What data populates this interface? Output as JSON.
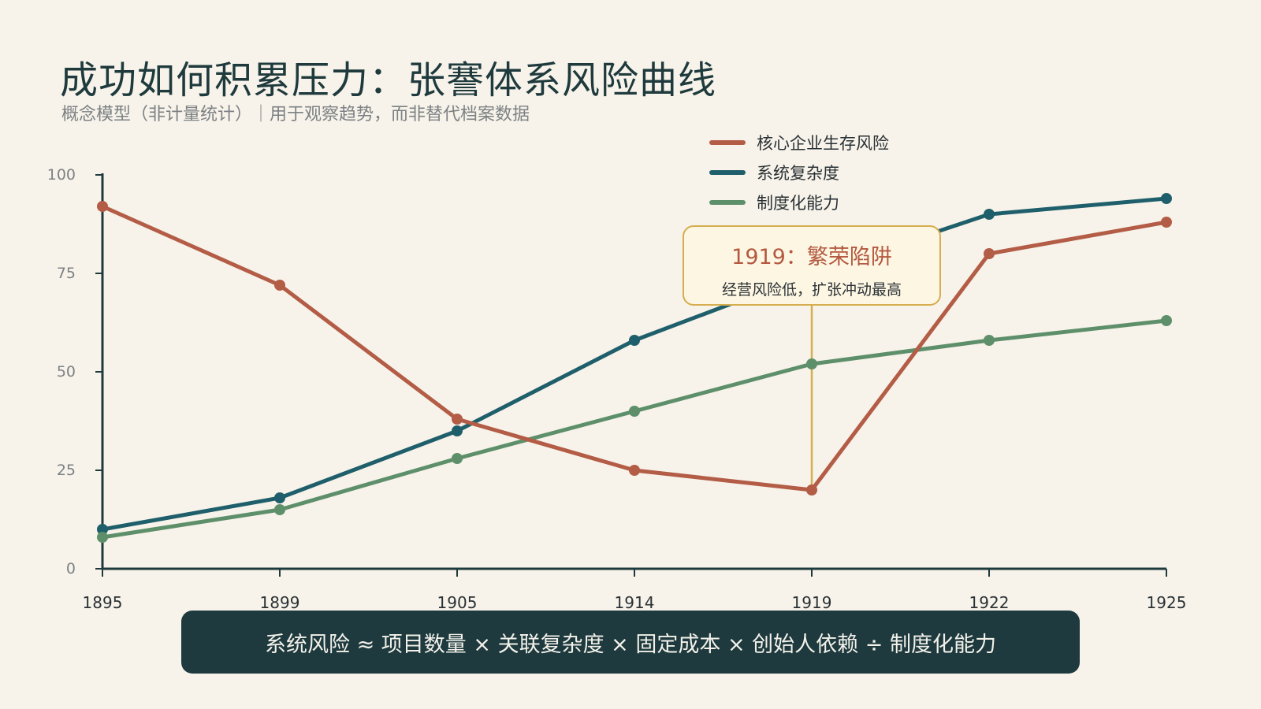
{
  "header": {
    "title": "成功如何积累压力：张謇体系风险曲线",
    "subtitle": "概念模型（非计量统计）｜用于观察趋势，而非替代档案数据"
  },
  "chart_data": {
    "type": "line",
    "x": [
      1895,
      1899,
      1905,
      1914,
      1919,
      1922,
      1925
    ],
    "x_tick_labels": [
      "1895",
      "1899",
      "1905",
      "1914",
      "1919",
      "1922",
      "1925"
    ],
    "y_ticks": [
      0,
      25,
      50,
      75,
      100
    ],
    "ylim": [
      0,
      100
    ],
    "legend_position": "top-right",
    "grid": false,
    "series": [
      {
        "name": "核心企业生存风险",
        "color": "#b35c46",
        "values": [
          92,
          72,
          38,
          25,
          20,
          80,
          88
        ]
      },
      {
        "name": "系统复杂度",
        "color": "#1f5f6b",
        "values": [
          10,
          18,
          35,
          58,
          75,
          90,
          94
        ]
      },
      {
        "name": "制度化能力",
        "color": "#5e8f6b",
        "values": [
          8,
          15,
          28,
          40,
          52,
          58,
          63
        ]
      }
    ],
    "annotation": {
      "x": 1919,
      "title": "1919：繁荣陷阱",
      "text": "经营风险低，扩张冲动最高",
      "color": "#d6ad4f"
    }
  },
  "footer": {
    "formula": "系统风险 ≈ 项目数量 × 关联复杂度 × 固定成本 × 创始人依赖 ÷ 制度化能力"
  },
  "colors": {
    "axis": "#1f3a3d",
    "background": "#f7f3ea",
    "formula_bg": "#1e3a3e"
  }
}
